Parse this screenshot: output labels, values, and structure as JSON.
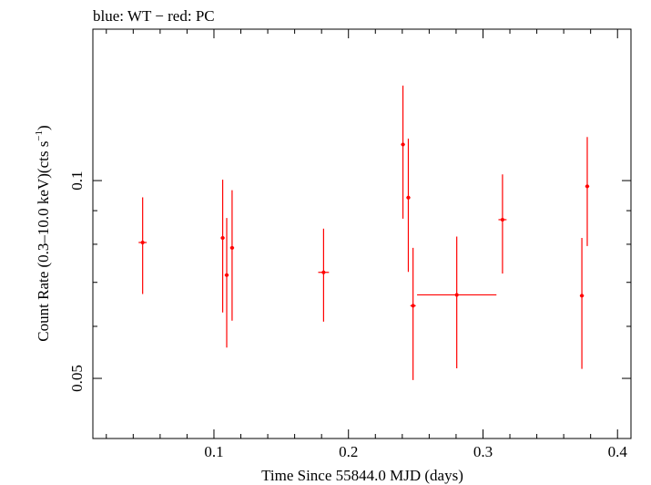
{
  "chart_data": {
    "type": "scatter",
    "title": "blue: WT − red: PC",
    "xlabel": "Time Since 55844.0 MJD (days)",
    "ylabel_main": "Count Rate (0.3–10.0 keV)(cts s",
    "ylabel_sup": "−1",
    "ylabel_end": ")",
    "x_scale": "linear",
    "y_scale": "log",
    "xlim": [
      0.01,
      0.41
    ],
    "ylim": [
      0.0405,
      0.17
    ],
    "x_ticks": [
      {
        "value": 0.1,
        "label": "0.1"
      },
      {
        "value": 0.2,
        "label": "0.2"
      },
      {
        "value": 0.3,
        "label": "0.3"
      },
      {
        "value": 0.4,
        "label": "0.4"
      }
    ],
    "y_ticks": [
      {
        "value": 0.05,
        "label": "0.05"
      },
      {
        "value": 0.1,
        "label": "0.1"
      }
    ],
    "series": [
      {
        "name": "PC",
        "color": "#ff0000",
        "points": [
          {
            "x": 0.047,
            "y": 0.0805,
            "xerr": 0.003,
            "ylo": 0.0672,
            "yhi": 0.0943
          },
          {
            "x": 0.1065,
            "y": 0.0818,
            "xerr": 0.0015,
            "ylo": 0.063,
            "yhi": 0.1003
          },
          {
            "x": 0.1095,
            "y": 0.0718,
            "xerr": 0.0015,
            "ylo": 0.0557,
            "yhi": 0.0877
          },
          {
            "x": 0.1135,
            "y": 0.079,
            "xerr": 0.0015,
            "ylo": 0.0612,
            "yhi": 0.0967
          },
          {
            "x": 0.1815,
            "y": 0.0725,
            "xerr": 0.004,
            "ylo": 0.061,
            "yhi": 0.0845
          },
          {
            "x": 0.2405,
            "y": 0.1135,
            "xerr": 0.0015,
            "ylo": 0.0875,
            "yhi": 0.1395
          },
          {
            "x": 0.2445,
            "y": 0.0942,
            "xerr": 0.0015,
            "ylo": 0.0726,
            "yhi": 0.1158
          },
          {
            "x": 0.248,
            "y": 0.0645,
            "xerr": 0.002,
            "ylo": 0.0497,
            "yhi": 0.079
          },
          {
            "x": 0.2805,
            "y": 0.067,
            "xerr": 0.0295,
            "ylo": 0.0518,
            "yhi": 0.0822
          },
          {
            "x": 0.3145,
            "y": 0.0872,
            "xerr": 0.003,
            "ylo": 0.0722,
            "yhi": 0.1022
          },
          {
            "x": 0.3735,
            "y": 0.0668,
            "xerr": 0.0015,
            "ylo": 0.0517,
            "yhi": 0.0818
          },
          {
            "x": 0.3775,
            "y": 0.098,
            "xerr": 0.0015,
            "ylo": 0.0795,
            "yhi": 0.1165
          }
        ]
      }
    ]
  }
}
